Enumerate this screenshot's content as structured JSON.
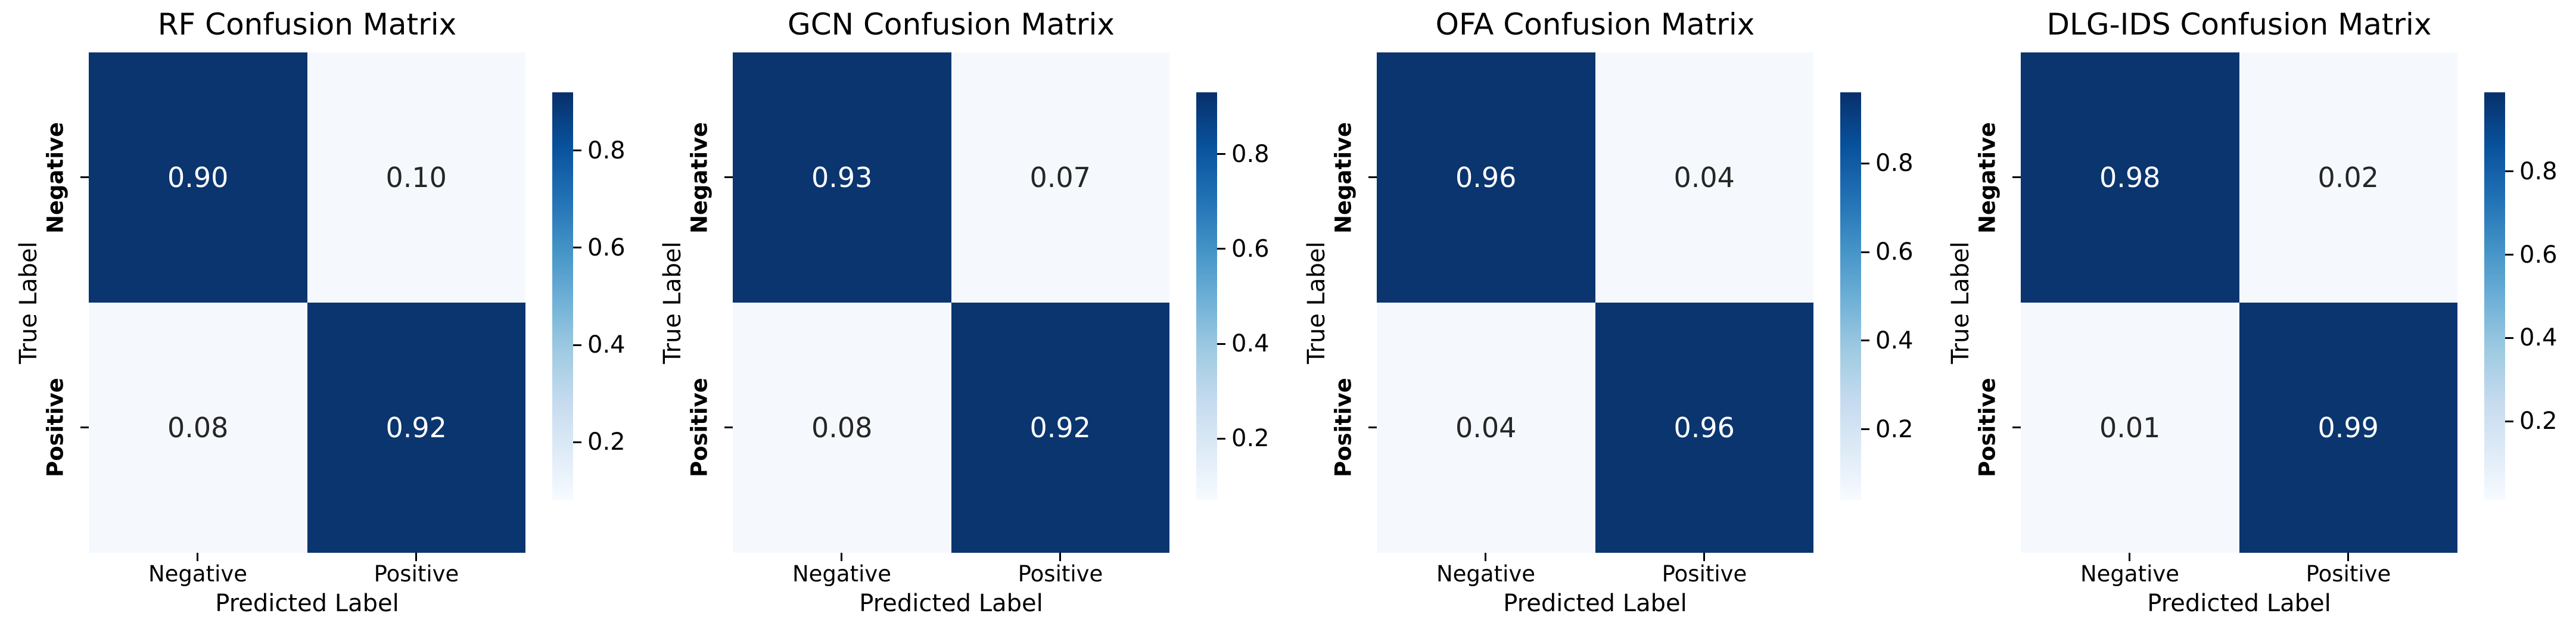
{
  "shared": {
    "xlabel": "Predicted Label",
    "ylabel": "True Label",
    "col_labels": [
      "Negative",
      "Positive"
    ],
    "row_labels": [
      "Negative",
      "Positive"
    ],
    "colorbar_tick_labels": [
      "0.8",
      "0.6",
      "0.4",
      "0.2"
    ],
    "colorbar_tick_values": [
      0.8,
      0.6,
      0.4,
      0.2
    ]
  },
  "colors": {
    "cell_dark": "#0a356f",
    "cell_light": "#f5f9fe",
    "annot_on_dark": "#ffffff",
    "annot_on_light": "#262626",
    "tick_mark": "#000000",
    "colormap_high": "#08306b",
    "colormap_low": "#f7fbff"
  },
  "charts": [
    {
      "title": "RF Confusion Matrix",
      "cells": [
        "0.90",
        "0.10",
        "0.08",
        "0.92"
      ]
    },
    {
      "title": "GCN Confusion Matrix",
      "cells": [
        "0.93",
        "0.07",
        "0.08",
        "0.92"
      ]
    },
    {
      "title": "OFA Confusion Matrix",
      "cells": [
        "0.96",
        "0.04",
        "0.04",
        "0.96"
      ]
    },
    {
      "title": "DLG-IDS Confusion Matrix",
      "cells": [
        "0.98",
        "0.02",
        "0.01",
        "0.99"
      ]
    }
  ],
  "chart_data": [
    {
      "type": "heatmap",
      "title": "RF Confusion Matrix",
      "xlabel": "Predicted Label",
      "ylabel": "True Label",
      "x_categories": [
        "Negative",
        "Positive"
      ],
      "y_categories": [
        "Negative",
        "Positive"
      ],
      "matrix": [
        [
          0.9,
          0.1
        ],
        [
          0.08,
          0.92
        ]
      ],
      "annotations": true,
      "colormap": "Blues",
      "colorbar_ticks": [
        0.2,
        0.4,
        0.6,
        0.8
      ],
      "legend_position": "right-colorbar",
      "grid": false
    },
    {
      "type": "heatmap",
      "title": "GCN Confusion Matrix",
      "xlabel": "Predicted Label",
      "ylabel": "True Label",
      "x_categories": [
        "Negative",
        "Positive"
      ],
      "y_categories": [
        "Negative",
        "Positive"
      ],
      "matrix": [
        [
          0.93,
          0.07
        ],
        [
          0.08,
          0.92
        ]
      ],
      "annotations": true,
      "colormap": "Blues",
      "colorbar_ticks": [
        0.2,
        0.4,
        0.6,
        0.8
      ],
      "legend_position": "right-colorbar",
      "grid": false
    },
    {
      "type": "heatmap",
      "title": "OFA Confusion Matrix",
      "xlabel": "Predicted Label",
      "ylabel": "True Label",
      "x_categories": [
        "Negative",
        "Positive"
      ],
      "y_categories": [
        "Negative",
        "Positive"
      ],
      "matrix": [
        [
          0.96,
          0.04
        ],
        [
          0.04,
          0.96
        ]
      ],
      "annotations": true,
      "colormap": "Blues",
      "colorbar_ticks": [
        0.2,
        0.4,
        0.6,
        0.8
      ],
      "legend_position": "right-colorbar",
      "grid": false
    },
    {
      "type": "heatmap",
      "title": "DLG-IDS Confusion Matrix",
      "xlabel": "Predicted Label",
      "ylabel": "True Label",
      "x_categories": [
        "Negative",
        "Positive"
      ],
      "y_categories": [
        "Negative",
        "Positive"
      ],
      "matrix": [
        [
          0.98,
          0.02
        ],
        [
          0.01,
          0.99
        ]
      ],
      "annotations": true,
      "colormap": "Blues",
      "colorbar_ticks": [
        0.2,
        0.4,
        0.6,
        0.8
      ],
      "legend_position": "right-colorbar",
      "grid": false
    }
  ]
}
